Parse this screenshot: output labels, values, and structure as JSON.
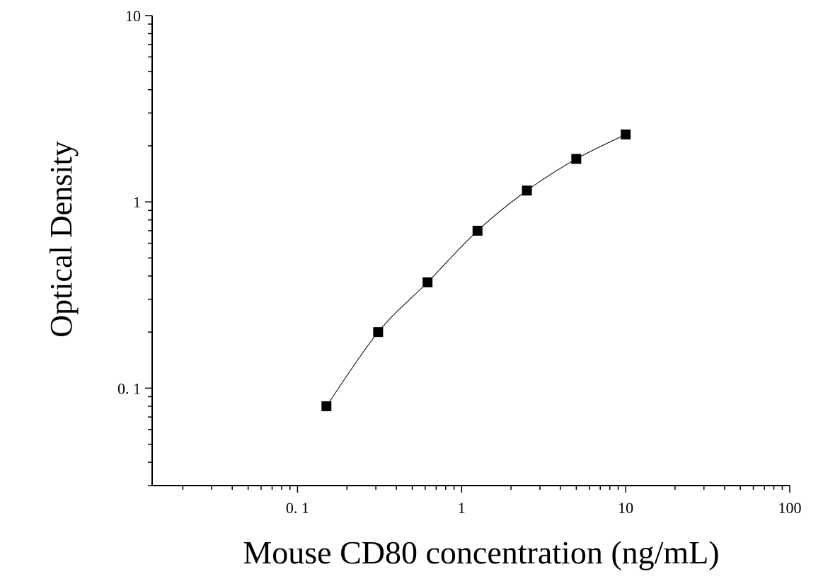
{
  "chart_data": {
    "type": "scatter",
    "title": "",
    "xlabel": "Mouse CD80 concentration (ng/mL)",
    "ylabel": "Optical Density",
    "x_scale": "log",
    "y_scale": "log",
    "xlim": [
      0.013,
      100
    ],
    "ylim": [
      0.03,
      10
    ],
    "x_ticks": [
      {
        "value": 0.1,
        "label": "0. 1"
      },
      {
        "value": 1,
        "label": "1"
      },
      {
        "value": 10,
        "label": "10"
      },
      {
        "value": 100,
        "label": "100"
      }
    ],
    "y_ticks": [
      {
        "value": 0.1,
        "label": "0. 1"
      },
      {
        "value": 1,
        "label": "1"
      },
      {
        "value": 10,
        "label": "10"
      }
    ],
    "grid": false,
    "legend": "none",
    "series": [
      {
        "x": [
          0.15,
          0.31,
          0.62,
          1.25,
          2.5,
          5,
          10
        ],
        "y": [
          0.08,
          0.2,
          0.37,
          0.7,
          1.15,
          1.7,
          2.3
        ],
        "marker": "square",
        "fit_curve": true,
        "color": "#000000"
      }
    ]
  }
}
